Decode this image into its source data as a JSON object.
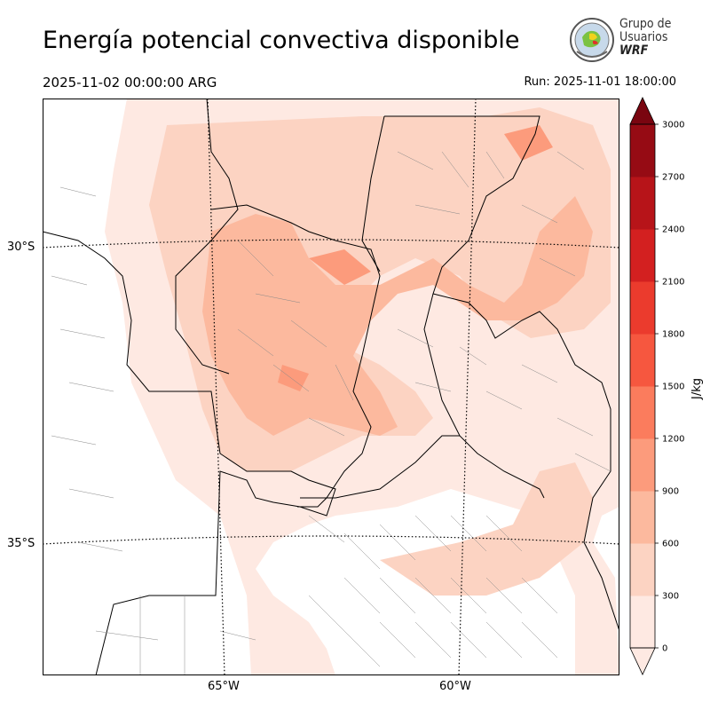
{
  "header": {
    "title": "Energía potencial convectiva disponible",
    "valid_time": "2025-11-02 00:00:00 ARG",
    "run_time": "Run: 2025-11-01 18:00:00"
  },
  "logo": {
    "line1": "Grupo de",
    "line2": "Usuarios",
    "line3": "WRF"
  },
  "map": {
    "lat_labels": [
      "30°S",
      "35°S"
    ],
    "lon_labels": [
      "65°W",
      "60°W"
    ]
  },
  "colorbar": {
    "units": "J/kg",
    "ticks": [
      "0",
      "300",
      "600",
      "900",
      "1200",
      "1500",
      "1800",
      "2100",
      "2400",
      "2700",
      "3000"
    ],
    "colors": [
      "#fee9e2",
      "#fcd3c2",
      "#fcb99e",
      "#fc9b7c",
      "#fb7c5d",
      "#f6573f",
      "#eb3b2d",
      "#d32020",
      "#b71419",
      "#960b14",
      "#7a0510"
    ]
  }
}
